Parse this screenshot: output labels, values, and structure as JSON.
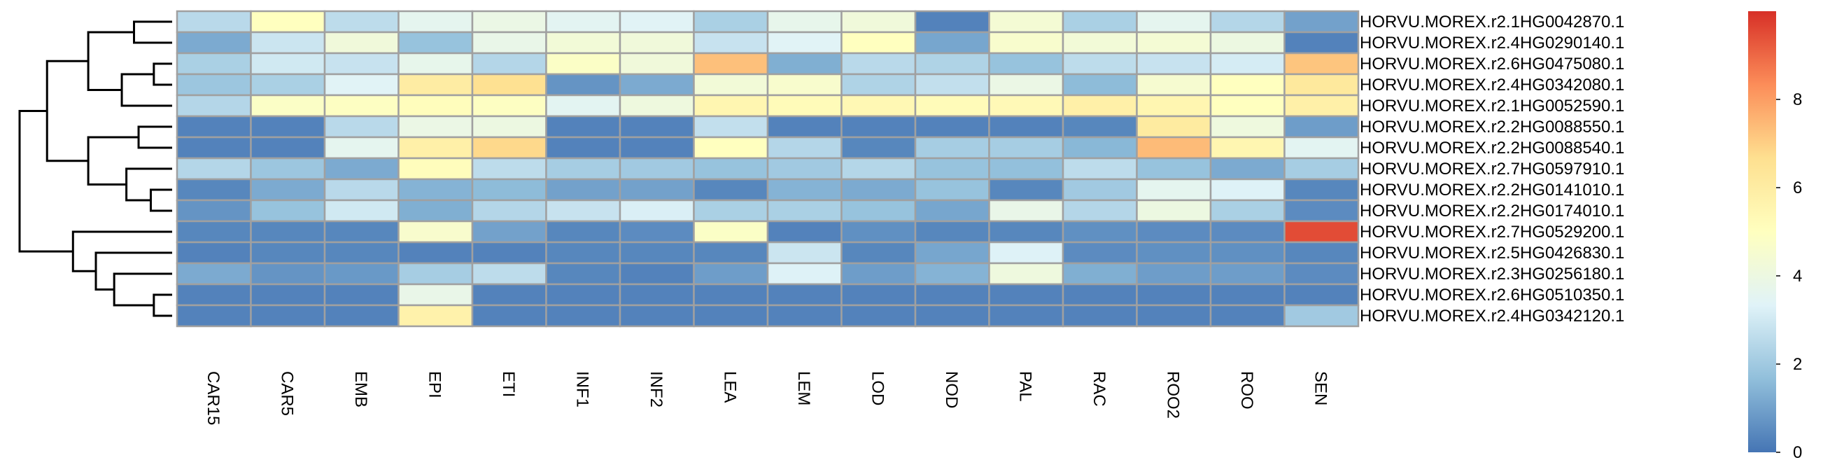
{
  "chart_data": {
    "type": "heatmap",
    "rows": [
      "HORVU.MOREX.r2.1HG0042870.1",
      "HORVU.MOREX.r2.4HG0290140.1",
      "HORVU.MOREX.r2.6HG0475080.1",
      "HORVU.MOREX.r2.4HG0342080.1",
      "HORVU.MOREX.r2.1HG0052590.1",
      "HORVU.MOREX.r2.2HG0088550.1",
      "HORVU.MOREX.r2.2HG0088540.1",
      "HORVU.MOREX.r2.7HG0597910.1",
      "HORVU.MOREX.r2.2HG0141010.1",
      "HORVU.MOREX.r2.2HG0174010.1",
      "HORVU.MOREX.r2.7HG0529200.1",
      "HORVU.MOREX.r2.5HG0426830.1",
      "HORVU.MOREX.r2.3HG0256180.1",
      "HORVU.MOREX.r2.6HG0510350.1",
      "HORVU.MOREX.r2.4HG0342120.1"
    ],
    "columns": [
      "CAR15",
      "CAR5",
      "EMB",
      "EPI",
      "ETI",
      "INF1",
      "INF2",
      "LEA",
      "LEM",
      "LOD",
      "NOD",
      "PAL",
      "RAC",
      "ROO2",
      "ROO",
      "SEN"
    ],
    "values": [
      [
        2.5,
        5.0,
        2.6,
        3.6,
        3.9,
        3.5,
        3.4,
        2.2,
        3.7,
        4.2,
        0.3,
        4.4,
        2.2,
        3.6,
        2.4,
        1.0
      ],
      [
        1.2,
        2.9,
        4.2,
        1.8,
        3.8,
        4.3,
        4.2,
        2.8,
        3.4,
        5.0,
        1.1,
        4.6,
        4.3,
        4.4,
        4.0,
        0.3
      ],
      [
        2.2,
        3.0,
        2.8,
        3.7,
        2.4,
        4.8,
        4.2,
        7.3,
        1.3,
        2.5,
        2.3,
        1.8,
        2.6,
        2.8,
        3.1,
        7.2
      ],
      [
        1.9,
        2.2,
        3.4,
        6.0,
        6.6,
        0.7,
        1.2,
        4.3,
        4.6,
        2.3,
        2.7,
        3.9,
        1.6,
        4.5,
        5.0,
        6.2
      ],
      [
        2.4,
        4.8,
        4.9,
        5.1,
        4.9,
        3.5,
        4.1,
        5.5,
        5.2,
        5.4,
        5.2,
        5.3,
        5.8,
        5.5,
        5.0,
        5.8
      ],
      [
        0.3,
        0.3,
        2.5,
        3.9,
        4.0,
        0.3,
        0.3,
        2.7,
        0.3,
        0.3,
        0.3,
        0.3,
        0.4,
        6.1,
        4.1,
        0.9
      ],
      [
        0.3,
        0.3,
        3.6,
        5.8,
        6.8,
        0.3,
        0.3,
        5.0,
        2.4,
        0.4,
        2.1,
        2.1,
        1.5,
        7.4,
        5.5,
        3.5
      ],
      [
        2.4,
        1.9,
        1.2,
        5.1,
        2.6,
        2.1,
        2.0,
        1.8,
        2.0,
        2.4,
        1.8,
        1.7,
        2.6,
        1.8,
        1.2,
        2.1
      ],
      [
        0.4,
        1.2,
        2.5,
        1.4,
        1.6,
        1.0,
        1.0,
        0.4,
        1.4,
        1.2,
        1.8,
        0.4,
        2.0,
        3.6,
        3.3,
        0.4
      ],
      [
        0.7,
        1.8,
        3.0,
        1.3,
        2.4,
        2.8,
        3.2,
        2.2,
        2.2,
        1.8,
        1.1,
        3.8,
        2.4,
        4.0,
        2.2,
        0.5
      ],
      [
        0.4,
        0.4,
        0.4,
        4.6,
        1.0,
        0.4,
        0.5,
        4.8,
        0.3,
        0.6,
        0.4,
        0.4,
        0.6,
        0.5,
        0.5,
        9.5
      ],
      [
        0.3,
        0.4,
        0.4,
        0.3,
        0.3,
        0.4,
        0.4,
        0.4,
        2.9,
        0.4,
        1.1,
        3.3,
        0.5,
        0.6,
        0.6,
        0.4
      ],
      [
        1.2,
        0.7,
        0.8,
        2.1,
        2.6,
        0.4,
        0.3,
        0.9,
        3.3,
        0.9,
        1.4,
        4.1,
        1.3,
        0.9,
        0.9,
        0.5
      ],
      [
        0.3,
        0.3,
        0.3,
        3.8,
        0.3,
        0.3,
        0.3,
        0.3,
        0.3,
        0.3,
        0.3,
        0.3,
        0.3,
        0.3,
        0.3,
        0.3
      ],
      [
        0.3,
        0.3,
        0.3,
        5.7,
        0.3,
        0.3,
        0.3,
        0.3,
        0.3,
        0.3,
        0.3,
        0.3,
        0.3,
        0.3,
        0.3,
        2.0
      ]
    ],
    "colorscale": [
      "#4575B4",
      "#91BFDB",
      "#E0F3F8",
      "#FFFFBF",
      "#FEE090",
      "#FC8D59",
      "#D73027"
    ],
    "color_range": [
      0,
      10
    ],
    "legend_ticks": [
      0,
      2,
      4,
      6,
      8
    ],
    "legend_placement": "right",
    "cell_border_color": "#A0A0A0",
    "row_dendrogram": {
      "leaf_order": [
        0,
        1,
        2,
        3,
        4,
        5,
        6,
        7,
        8,
        9,
        10,
        11,
        12,
        13,
        14
      ],
      "merges": [
        {
          "id": "n1",
          "children": [
            "L0",
            "L1"
          ],
          "height": 0.25
        },
        {
          "id": "n2",
          "children": [
            "L2",
            "L3"
          ],
          "height": 0.12
        },
        {
          "id": "n3",
          "children": [
            "n2",
            "L4"
          ],
          "height": 0.33
        },
        {
          "id": "n4",
          "children": [
            "n1",
            "n3"
          ],
          "height": 0.55
        },
        {
          "id": "n5",
          "children": [
            "L5",
            "L6"
          ],
          "height": 0.22
        },
        {
          "id": "n6",
          "children": [
            "L8",
            "L9"
          ],
          "height": 0.14
        },
        {
          "id": "n7",
          "children": [
            "L7",
            "n6"
          ],
          "height": 0.3
        },
        {
          "id": "n8",
          "children": [
            "n5",
            "n7"
          ],
          "height": 0.55
        },
        {
          "id": "n9",
          "children": [
            "n4",
            "n8"
          ],
          "height": 0.82
        },
        {
          "id": "n10",
          "children": [
            "L13",
            "L14"
          ],
          "height": 0.12
        },
        {
          "id": "n11",
          "children": [
            "L12",
            "n10"
          ],
          "height": 0.38
        },
        {
          "id": "n12",
          "children": [
            "L11",
            "n11"
          ],
          "height": 0.5
        },
        {
          "id": "n13",
          "children": [
            "L10",
            "n12"
          ],
          "height": 0.65
        },
        {
          "id": "n14",
          "children": [
            "n9",
            "n13"
          ],
          "height": 1.0
        }
      ]
    }
  }
}
